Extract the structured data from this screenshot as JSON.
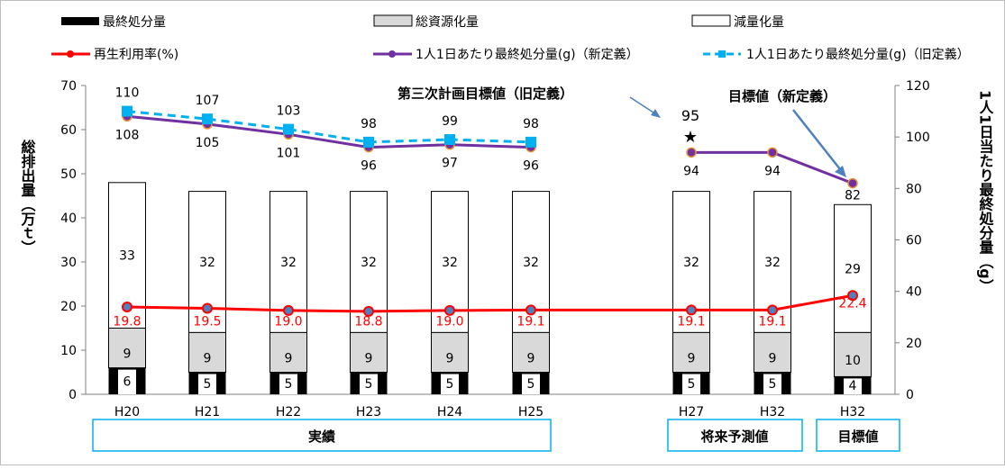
{
  "chart_data": {
    "type": "bar",
    "categories": [
      "H20",
      "H21",
      "H22",
      "H23",
      "H24",
      "H25",
      "H27",
      "H32",
      "H32"
    ],
    "series": [
      {
        "name": "最終処分量",
        "type": "bar",
        "values": [
          6,
          5,
          5,
          5,
          5,
          5,
          5,
          5,
          4
        ]
      },
      {
        "name": "総資源化量",
        "type": "bar",
        "values": [
          9,
          9,
          9,
          9,
          9,
          9,
          9,
          9,
          10
        ]
      },
      {
        "name": "減量化量",
        "type": "bar",
        "values": [
          33,
          32,
          32,
          32,
          32,
          32,
          32,
          32,
          29
        ]
      },
      {
        "name": "再生利用率(%)",
        "type": "line",
        "axis": "left",
        "values": [
          19.8,
          19.5,
          19.0,
          18.8,
          19.0,
          19.1,
          19.1,
          19.1,
          22.4
        ]
      },
      {
        "name": "1人1日あたり最終処分量(g)（新定義）",
        "type": "line",
        "axis": "right",
        "values": [
          108,
          105,
          101,
          96,
          97,
          96,
          94,
          94,
          82
        ]
      },
      {
        "name": "1人1日あたり最終処分量(g)（旧定義）",
        "type": "line",
        "axis": "right",
        "values": [
          110,
          107,
          103,
          98,
          99,
          98,
          null,
          null,
          null
        ]
      }
    ],
    "ylabel": "総排出量（万ｔ）",
    "y2label": "1人1日当たり最終処分量（g）",
    "ylim": [
      0,
      70
    ],
    "y2lim": [
      0,
      120
    ],
    "yticks": [
      0,
      10,
      20,
      30,
      40,
      50,
      60,
      70
    ],
    "y2ticks": [
      0,
      20,
      40,
      60,
      80,
      100,
      120
    ],
    "annotations": {
      "old_target_label": "第三次計画目標値（旧定義）",
      "old_target_value": "95",
      "star": "★",
      "new_target_label": "目標値（新定義）"
    },
    "groups": [
      {
        "label": "実績"
      },
      {
        "label": "将来予測値"
      },
      {
        "label": "目標値"
      }
    ],
    "legend_position": "top"
  },
  "colors": {
    "final_disposal": "#000000",
    "resource": "#d9d9d9",
    "reduction": "#ffffff",
    "rate_line": "#ff0000",
    "new_def_line": "#7030a0",
    "old_def_line": "#00b0f0",
    "box_border": "#00b0f0",
    "arrow": "#4f81bd"
  }
}
